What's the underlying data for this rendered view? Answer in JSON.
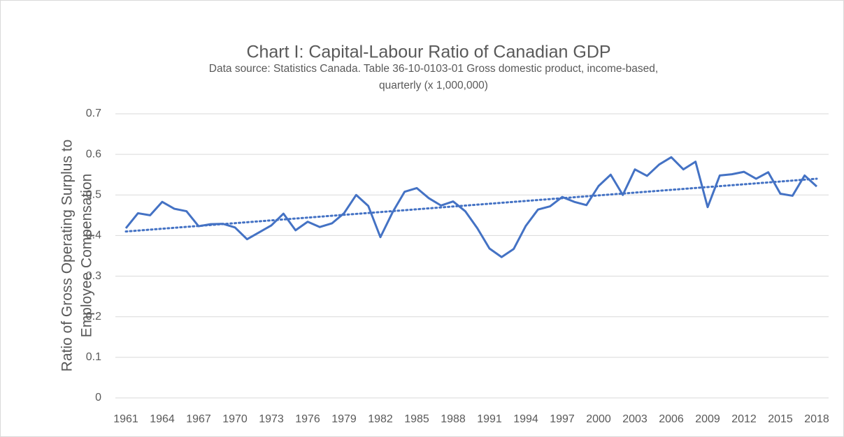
{
  "chart_data": {
    "type": "line",
    "title": "Chart I: Capital-Labour Ratio of Canadian GDP",
    "subtitle": [
      "Data source: Statistics Canada. Table 36-10-0103-01 Gross domestic product, income-based,",
      "quarterly (x 1,000,000)"
    ],
    "ylabel": [
      "Ratio of Gross Operating Surplus to",
      "Employee Compensation"
    ],
    "x": [
      1961,
      1962,
      1963,
      1964,
      1965,
      1966,
      1967,
      1968,
      1969,
      1970,
      1971,
      1972,
      1973,
      1974,
      1975,
      1976,
      1977,
      1978,
      1979,
      1980,
      1981,
      1982,
      1983,
      1984,
      1985,
      1986,
      1987,
      1988,
      1989,
      1990,
      1991,
      1992,
      1993,
      1994,
      1995,
      1996,
      1997,
      1998,
      1999,
      2000,
      2001,
      2002,
      2003,
      2004,
      2005,
      2006,
      2007,
      2008,
      2009,
      2010,
      2011,
      2012,
      2013,
      2014,
      2015,
      2016,
      2017,
      2018
    ],
    "series": [
      {
        "color": "#4472c4",
        "values": [
          0.418,
          0.455,
          0.45,
          0.483,
          0.466,
          0.46,
          0.423,
          0.428,
          0.429,
          0.42,
          0.391,
          0.408,
          0.425,
          0.454,
          0.413,
          0.434,
          0.421,
          0.43,
          0.455,
          0.5,
          0.473,
          0.396,
          0.457,
          0.508,
          0.517,
          0.492,
          0.474,
          0.484,
          0.46,
          0.418,
          0.368,
          0.347,
          0.367,
          0.424,
          0.464,
          0.472,
          0.495,
          0.483,
          0.475,
          0.522,
          0.55,
          0.5,
          0.563,
          0.547,
          0.575,
          0.593,
          0.563,
          0.582,
          0.47,
          0.548,
          0.551,
          0.557,
          0.54,
          0.556,
          0.503,
          0.498,
          0.548,
          0.521
        ]
      }
    ],
    "trendline": {
      "start": 0.41,
      "end": 0.54,
      "color": "#4472c4",
      "style": "dotted"
    },
    "xlim": [
      1961,
      2018
    ],
    "xticks": [
      1961,
      1964,
      1967,
      1970,
      1973,
      1976,
      1979,
      1982,
      1985,
      1988,
      1991,
      1994,
      1997,
      2000,
      2003,
      2006,
      2009,
      2012,
      2015,
      2018
    ],
    "ylim": [
      0,
      0.7
    ],
    "yticks": [
      0,
      0.1,
      0.2,
      0.3,
      0.4,
      0.5,
      0.6,
      0.7
    ],
    "grid": true
  }
}
